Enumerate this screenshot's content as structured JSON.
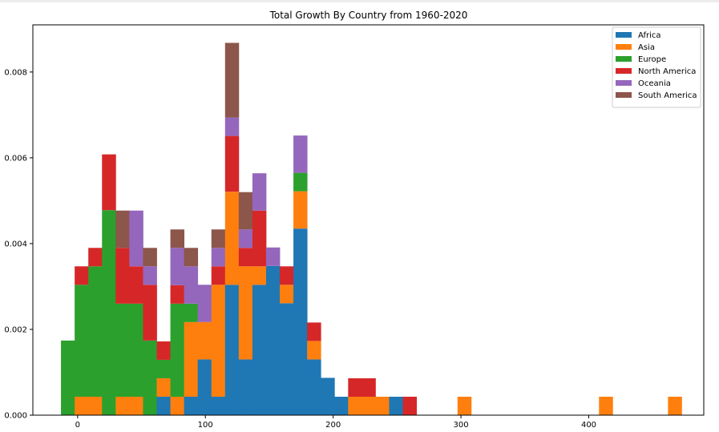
{
  "chart_data": {
    "type": "bar",
    "stacked": true,
    "title": "Total Growth By Country from 1960-2020",
    "xlabel": "",
    "ylabel": "",
    "xlim": [
      -35,
      490
    ],
    "ylim": [
      0,
      0.0091
    ],
    "x_ticks": [
      0,
      100,
      200,
      300,
      400
    ],
    "x_tick_labels": [
      "0",
      "100",
      "200",
      "300",
      "400"
    ],
    "y_ticks": [
      0,
      0.002,
      0.004,
      0.006,
      0.008
    ],
    "y_tick_labels": [
      "0.000",
      "0.002",
      "0.004",
      "0.006",
      "0.008"
    ],
    "grid": false,
    "legend_position": "upper right",
    "bin_width": 10.7,
    "bin_starts": [
      -13,
      -2.3,
      8.4,
      19.1,
      29.8,
      40.5,
      51.2,
      61.9,
      72.6,
      83.3,
      94,
      104.7,
      115.4,
      126.1,
      136.8,
      147.5,
      158.2,
      168.9,
      179.6,
      190.3,
      201,
      211.7,
      222.4,
      233.1,
      243.8,
      254.5,
      265.2,
      275.9,
      286.6,
      297.3,
      408,
      462
    ],
    "series": [
      {
        "name": "Africa",
        "color": "#1f77b4",
        "values": [
          0,
          0,
          0,
          0,
          0,
          0,
          0,
          0.00043,
          0,
          0.00043,
          0.0013,
          0.00043,
          0.00304,
          0.0013,
          0.00304,
          0.00348,
          0.00261,
          0.00435,
          0.0013,
          0.00087,
          0.00043,
          0,
          0,
          0,
          0.00043,
          0,
          0,
          0,
          0,
          0,
          0,
          0
        ]
      },
      {
        "name": "Asia",
        "color": "#ff7f0e",
        "values": [
          0,
          0.00043,
          0.00043,
          0,
          0.00043,
          0.00043,
          0,
          0.00043,
          0.00043,
          0.00174,
          0.00087,
          0.00261,
          0.00217,
          0.00217,
          0.00043,
          0,
          0.00043,
          0.00087,
          0.00043,
          0,
          0,
          0.00043,
          0.00043,
          0.00043,
          0,
          0,
          0,
          0,
          0,
          0.00043,
          0.00043,
          0.00043
        ]
      },
      {
        "name": "Europe",
        "color": "#2ca02c",
        "values": [
          0.00174,
          0.00261,
          0.00304,
          0.00478,
          0.00217,
          0.00217,
          0.00174,
          0.00043,
          0.00217,
          0.00043,
          0,
          0,
          0,
          0,
          0,
          0,
          0,
          0.00043,
          0,
          0,
          0,
          0,
          0,
          0,
          0,
          0,
          0,
          0,
          0,
          0,
          0,
          0
        ]
      },
      {
        "name": "North America",
        "color": "#d62728",
        "values": [
          0,
          0.00043,
          0.00043,
          0.0013,
          0.0013,
          0.00087,
          0.0013,
          0.00043,
          0.00043,
          0,
          0,
          0.00043,
          0.0013,
          0.00043,
          0.0013,
          0,
          0.00043,
          0,
          0.00043,
          0,
          0,
          0.00043,
          0.00043,
          0,
          0,
          0.00043,
          0,
          0,
          0,
          0,
          0,
          0
        ]
      },
      {
        "name": "Oceania",
        "color": "#9467bd",
        "values": [
          0,
          0,
          0,
          0,
          0,
          0.0013,
          0.00043,
          0,
          0.00087,
          0.00087,
          0.00087,
          0.00043,
          0.00043,
          0.00043,
          0.00087,
          0.00043,
          0,
          0.00087,
          0,
          0,
          0,
          0,
          0,
          0,
          0,
          0,
          0,
          0,
          0,
          0,
          0,
          0
        ]
      },
      {
        "name": "South America",
        "color": "#8c564b",
        "values": [
          0,
          0,
          0,
          0,
          0.00087,
          0,
          0.00043,
          0,
          0.00043,
          0.00043,
          0,
          0.00043,
          0.00174,
          0.00087,
          0,
          0,
          0,
          0,
          0,
          0,
          0,
          0,
          0,
          0,
          0,
          0,
          0,
          0,
          0,
          0,
          0,
          0
        ]
      }
    ]
  }
}
